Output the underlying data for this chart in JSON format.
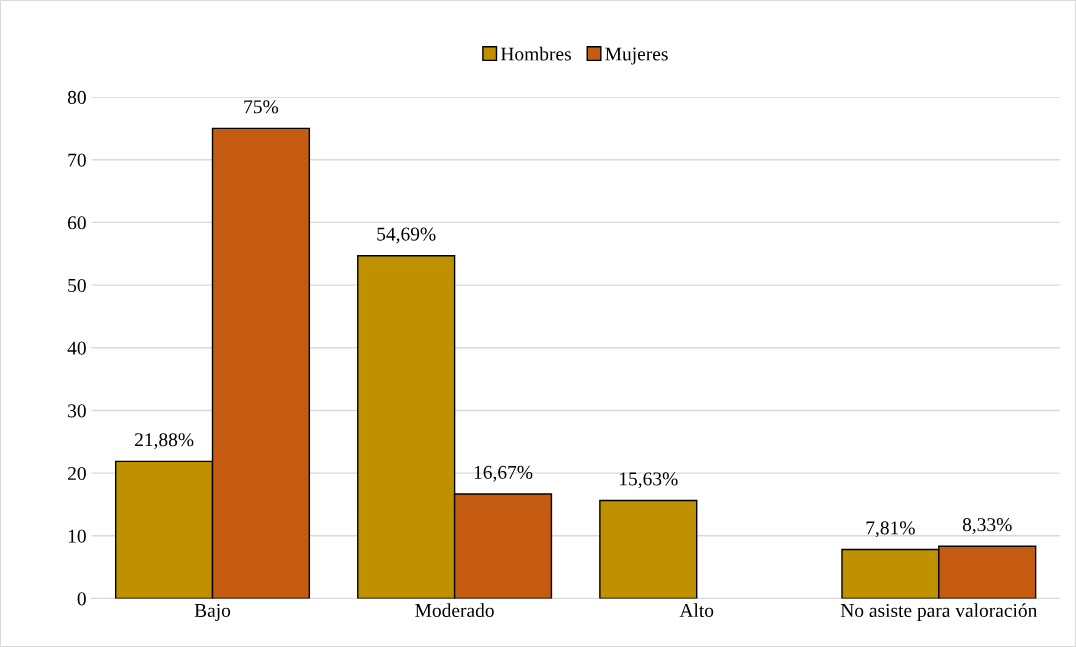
{
  "chart_data": {
    "type": "bar",
    "categories": [
      "Bajo",
      "Moderado",
      "Alto",
      "No asiste para valoración"
    ],
    "series": [
      {
        "name": "Hombres",
        "color": "#bf9000",
        "values": [
          21.88,
          54.69,
          15.63,
          7.81
        ],
        "value_labels": [
          "21,88%",
          "54,69%",
          "15,63%",
          "7,81%"
        ]
      },
      {
        "name": "Mujeres",
        "color": "#c55a11",
        "values": [
          75,
          16.67,
          null,
          8.33
        ],
        "value_labels": [
          "75%",
          "16,67%",
          null,
          "8,33%"
        ]
      }
    ],
    "ylim": [
      0,
      80
    ],
    "yticks": [
      0,
      10,
      20,
      30,
      40,
      50,
      60,
      70,
      80
    ],
    "grid": "y",
    "legend": "top"
  }
}
